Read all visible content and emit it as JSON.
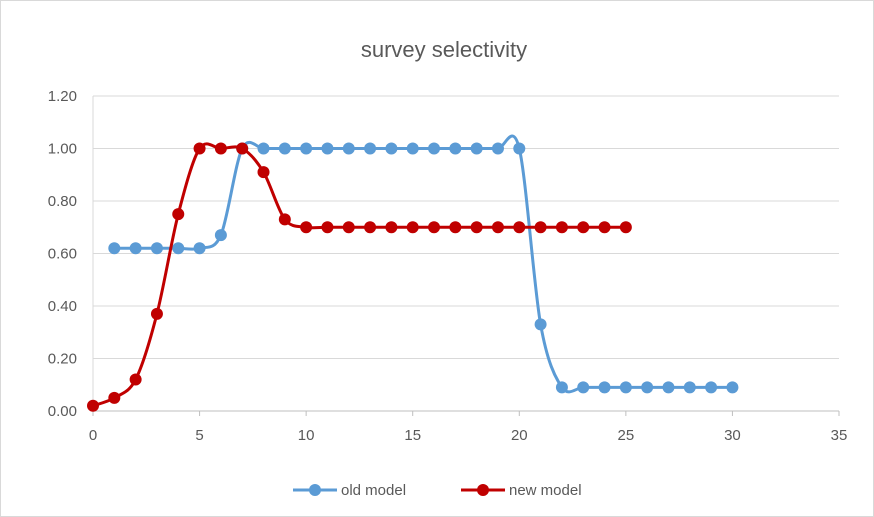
{
  "chart_data": {
    "type": "line",
    "title": "survey selectivity",
    "xlabel": "",
    "ylabel": "",
    "xlim": [
      0,
      35
    ],
    "ylim": [
      0,
      1.2
    ],
    "x_ticks": [
      "0",
      "5",
      "10",
      "15",
      "20",
      "25",
      "30",
      "35"
    ],
    "x_tick_values": [
      0,
      5,
      10,
      15,
      20,
      25,
      30,
      35
    ],
    "y_ticks": [
      "0.00",
      "0.20",
      "0.40",
      "0.60",
      "0.80",
      "1.00",
      "1.20"
    ],
    "y_tick_values": [
      0,
      0.2,
      0.4,
      0.6,
      0.8,
      1.0,
      1.2
    ],
    "grid": "horizontal",
    "legend_position": "bottom",
    "series": [
      {
        "name": "old model",
        "color": "#5b9bd5",
        "x": [
          1,
          2,
          3,
          4,
          5,
          6,
          7,
          8,
          9,
          10,
          11,
          12,
          13,
          14,
          15,
          16,
          17,
          18,
          19,
          20,
          21,
          22,
          23,
          24,
          25,
          26,
          27,
          28,
          29,
          30
        ],
        "values": [
          0.62,
          0.62,
          0.62,
          0.62,
          0.62,
          0.67,
          1.0,
          1.0,
          1.0,
          1.0,
          1.0,
          1.0,
          1.0,
          1.0,
          1.0,
          1.0,
          1.0,
          1.0,
          1.0,
          1.0,
          0.33,
          0.09,
          0.09,
          0.09,
          0.09,
          0.09,
          0.09,
          0.09,
          0.09,
          0.09
        ]
      },
      {
        "name": "new model",
        "color": "#c00000",
        "x": [
          0,
          1,
          2,
          3,
          4,
          5,
          6,
          7,
          8,
          9,
          10,
          11,
          12,
          13,
          14,
          15,
          16,
          17,
          18,
          19,
          20,
          21,
          22,
          23,
          24,
          25
        ],
        "values": [
          0.02,
          0.05,
          0.12,
          0.37,
          0.75,
          1.0,
          1.0,
          1.0,
          0.91,
          0.73,
          0.7,
          0.7,
          0.7,
          0.7,
          0.7,
          0.7,
          0.7,
          0.7,
          0.7,
          0.7,
          0.7,
          0.7,
          0.7,
          0.7,
          0.7,
          0.7
        ]
      }
    ]
  }
}
